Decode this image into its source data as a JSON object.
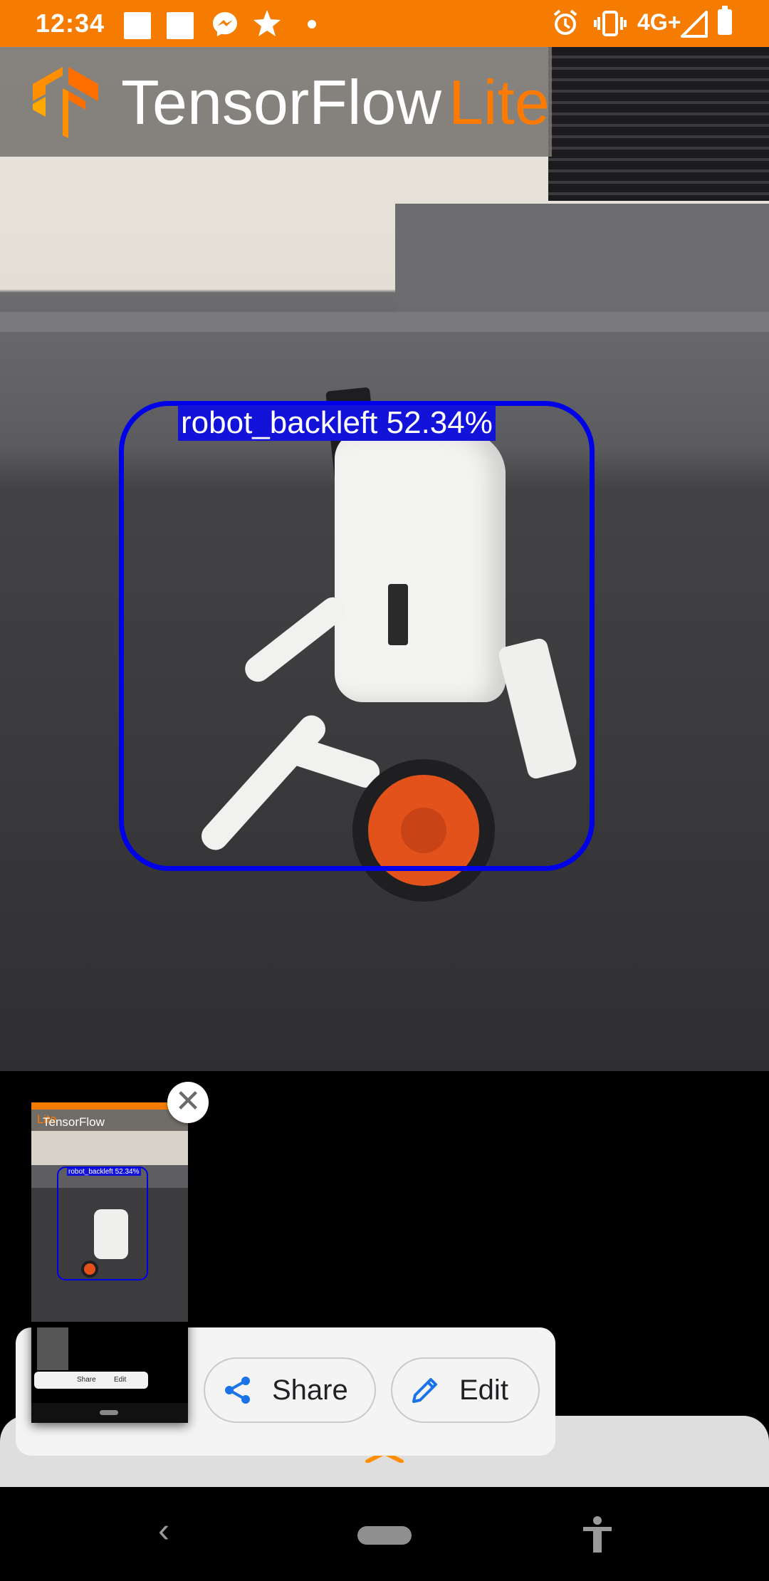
{
  "status_bar": {
    "time": "12:34",
    "network": "4G+",
    "icons": [
      "app-square-icon",
      "app-square-icon",
      "messenger-icon",
      "pinwheel-icon",
      "dot-icon",
      "alarm-icon",
      "vibrate-icon",
      "signal-icon",
      "battery-icon"
    ]
  },
  "app_header": {
    "title_main": "TensorFlow",
    "title_accent": "Lite",
    "logo_icon": "tensorflow-logo-icon",
    "accent_color": "#ff7a00"
  },
  "detection": {
    "label": "robot_backleft 52.34%",
    "box_color": "#0000e8"
  },
  "screenshot_preview": {
    "header_main": "TensorFlow",
    "header_accent": "Lite",
    "detection_label": "robot_backleft 52.34%",
    "mini_share": "Share",
    "mini_edit": "Edit"
  },
  "actions": {
    "share_label": "Share",
    "edit_label": "Edit",
    "icon_color": "#1a73e8"
  },
  "status_bar_color": "#f57c00"
}
